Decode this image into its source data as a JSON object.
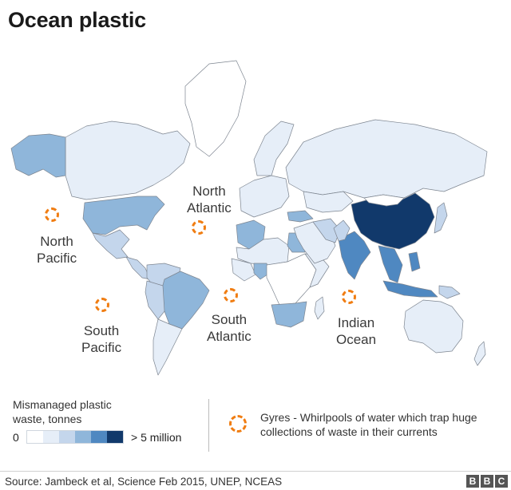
{
  "title": "Ocean plastic",
  "colors": {
    "scale": [
      "#ffffff",
      "#e6eef8",
      "#c4d6ec",
      "#8fb6da",
      "#4f88c1",
      "#11396b"
    ],
    "land_border": "#7d8590",
    "gyre": "#f07d12"
  },
  "oceans": [
    {
      "id": "north-atlantic",
      "line1": "North",
      "line2": "Atlantic"
    },
    {
      "id": "north-pacific",
      "line1": "North",
      "line2": "Pacific"
    },
    {
      "id": "south-atlantic",
      "line1": "South",
      "line2": "Atlantic"
    },
    {
      "id": "south-pacific",
      "line1": "South",
      "line2": "Pacific"
    },
    {
      "id": "indian-ocean",
      "line1": "Indian",
      "line2": "Ocean"
    }
  ],
  "legend": {
    "title": "Mismanaged plastic\nwaste, tonnes",
    "min_label": "0",
    "max_label": "> 5 million",
    "gyre_text": "Gyres - Whirlpools of water which trap huge collections of waste in their currents"
  },
  "regions": [
    {
      "name": "Canada",
      "level": 1
    },
    {
      "name": "Alaska",
      "level": 3
    },
    {
      "name": "Greenland",
      "level": 0
    },
    {
      "name": "United States",
      "level": 3
    },
    {
      "name": "Mexico",
      "level": 2
    },
    {
      "name": "Central America",
      "level": 2
    },
    {
      "name": "Colombia and Venezuela",
      "level": 2
    },
    {
      "name": "Brazil",
      "level": 3
    },
    {
      "name": "Peru",
      "level": 2
    },
    {
      "name": "Argentina and Chile",
      "level": 1
    },
    {
      "name": "Europe",
      "level": 1
    },
    {
      "name": "Scandinavia",
      "level": 1
    },
    {
      "name": "Russia",
      "level": 1
    },
    {
      "name": "North Africa",
      "level": 3
    },
    {
      "name": "Sahara",
      "level": 1
    },
    {
      "name": "Egypt",
      "level": 3
    },
    {
      "name": "West Africa",
      "level": 1
    },
    {
      "name": "Nigeria",
      "level": 3
    },
    {
      "name": "Central Africa",
      "level": 0
    },
    {
      "name": "East Africa",
      "level": 1
    },
    {
      "name": "Southern Africa",
      "level": 3
    },
    {
      "name": "Madagascar",
      "level": 1
    },
    {
      "name": "Middle East",
      "level": 1
    },
    {
      "name": "Turkey",
      "level": 3
    },
    {
      "name": "Iran",
      "level": 2
    },
    {
      "name": "Kazakhstan",
      "level": 1
    },
    {
      "name": "India",
      "level": 4
    },
    {
      "name": "Pakistan",
      "level": 2
    },
    {
      "name": "China",
      "level": 5
    },
    {
      "name": "Mongolia",
      "level": 0
    },
    {
      "name": "Southeast Asia",
      "level": 4
    },
    {
      "name": "Japan",
      "level": 2
    },
    {
      "name": "Philippines",
      "level": 4
    },
    {
      "name": "Indonesia",
      "level": 4
    },
    {
      "name": "Papua New Guinea",
      "level": 2
    },
    {
      "name": "Australia",
      "level": 1
    },
    {
      "name": "New Zealand",
      "level": 1
    }
  ],
  "source": "Source: Jambeck et al, Science Feb 2015, UNEP, NCEAS",
  "logo": "BBC"
}
